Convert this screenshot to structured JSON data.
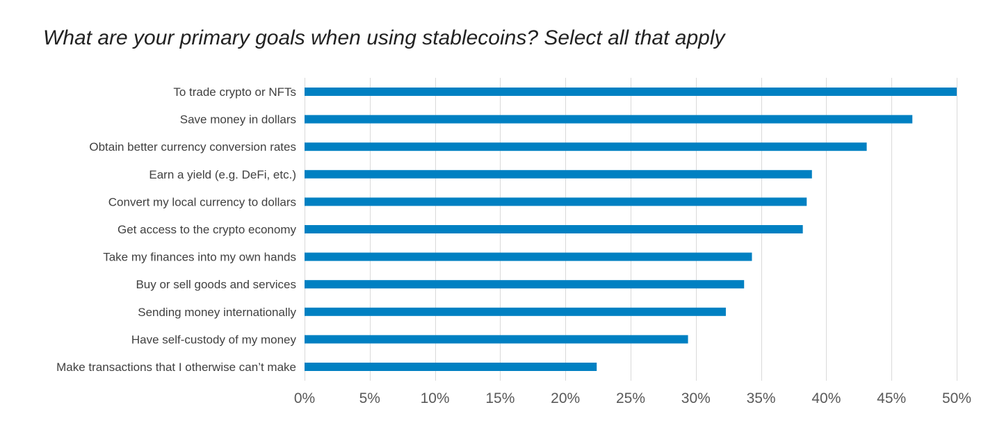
{
  "chart_data": {
    "type": "bar",
    "orientation": "horizontal",
    "title": "What are your primary goals when using stablecoins? Select all that apply",
    "xlabel": "",
    "ylabel": "",
    "categories": [
      "To trade crypto or NFTs",
      "Save money in dollars",
      "Obtain better currency conversion rates",
      "Earn a yield (e.g. DeFi, etc.)",
      "Convert my local currency to dollars",
      "Get access to the crypto economy",
      "Take my finances into my own hands",
      "Buy or sell goods and services",
      "Sending money internationally",
      "Have self-custody of my money",
      "Make transactions that I otherwise can’t make"
    ],
    "values": [
      50.0,
      46.6,
      43.1,
      38.9,
      38.5,
      38.2,
      34.3,
      33.7,
      32.3,
      29.4,
      22.4
    ],
    "xlim": [
      0,
      50
    ],
    "xticks": [
      0,
      5,
      10,
      15,
      20,
      25,
      30,
      35,
      40,
      45,
      50
    ],
    "xtick_labels": [
      "0%",
      "5%",
      "10%",
      "15%",
      "20%",
      "25%",
      "30%",
      "35%",
      "40%",
      "45%",
      "50%"
    ],
    "grid": "vertical",
    "legend": "none",
    "bar_color": "#0080C2"
  }
}
